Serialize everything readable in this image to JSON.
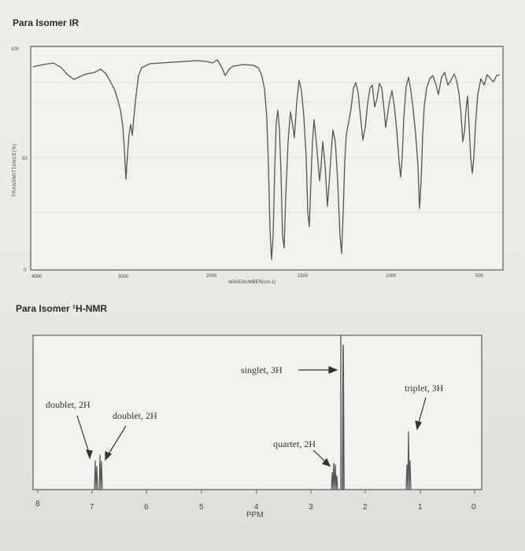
{
  "ir": {
    "title": "Para Isomer IR",
    "y_label": "TRANSMITTANCE(%)",
    "y_ticks": [
      "100",
      "50",
      "0"
    ],
    "x_label": "WAVENUMBER(cm-1)",
    "x_ticks": [
      "4000",
      "3000",
      "2000",
      "1500",
      "1000",
      "500"
    ]
  },
  "nmr": {
    "title": "Para Isomer ¹H-NMR",
    "x_label": "PPM",
    "x_ticks": [
      "8",
      "7",
      "6",
      "5",
      "4",
      "3",
      "2",
      "1",
      "0"
    ],
    "annotations": {
      "doublet_left": "doublet, 2H",
      "doublet_right": "doublet, 2H",
      "singlet": "singlet, 3H",
      "quartet": "quartet, 2H",
      "triplet": "triplet, 3H"
    }
  },
  "colors": {
    "trace": "#555555",
    "frame": "#5a5a5a",
    "annotation": "#333333"
  }
}
